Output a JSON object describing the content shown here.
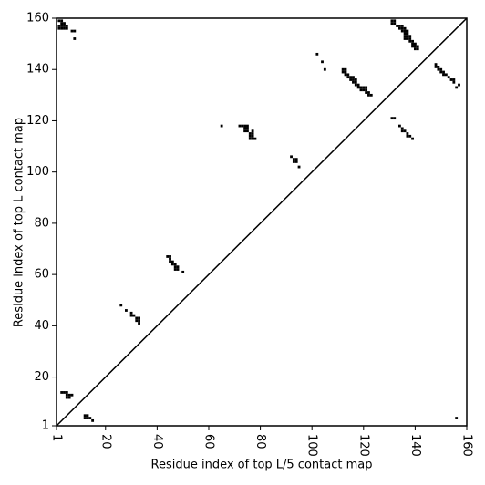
{
  "chart_data": {
    "type": "scatter",
    "xlabel": "Residue index of top L/5 contact map",
    "ylabel": "Residue index of top L contact map",
    "xlim": [
      1,
      160
    ],
    "ylim": [
      1,
      160
    ],
    "xticks": [
      1,
      20,
      40,
      60,
      80,
      100,
      120,
      140,
      160
    ],
    "yticks": [
      1,
      20,
      40,
      60,
      80,
      100,
      120,
      140,
      160
    ],
    "color": "#000000",
    "x": [
      2,
      3,
      3,
      4,
      2,
      3,
      4,
      5,
      4,
      5,
      3,
      2,
      7,
      8,
      8,
      102,
      104,
      105,
      112,
      113,
      113,
      112,
      113,
      114,
      114,
      115,
      116,
      115,
      116,
      117,
      116,
      117,
      118,
      117,
      118,
      119,
      120,
      121,
      119,
      120,
      121,
      121,
      122,
      122,
      123,
      65,
      72,
      73,
      74,
      75,
      74,
      75,
      74,
      75,
      77,
      76,
      77,
      76,
      77,
      76,
      77,
      78,
      92,
      93,
      94,
      93,
      94,
      95,
      44,
      45,
      45,
      45,
      46,
      46,
      47,
      47,
      48,
      47,
      48,
      50,
      26,
      28,
      30,
      30,
      31,
      32,
      33,
      32,
      33,
      33,
      131,
      132,
      131,
      132,
      133,
      134,
      135,
      134,
      135,
      136,
      135,
      136,
      137,
      136,
      137,
      136,
      137,
      138,
      136,
      137,
      138,
      139,
      138,
      139,
      140,
      139,
      140,
      141,
      140,
      141,
      148,
      148,
      149,
      149,
      150,
      150,
      151,
      152,
      151,
      153,
      154,
      155,
      155,
      157,
      156,
      131,
      132,
      134,
      135,
      135,
      136,
      137,
      137,
      138,
      139,
      156,
      3,
      4,
      5,
      5,
      6,
      7,
      5,
      6,
      12,
      13,
      12,
      13,
      14,
      15
    ],
    "values": [
      159,
      159,
      158,
      158,
      157,
      157,
      157,
      157,
      156,
      156,
      156,
      156,
      155,
      155,
      152,
      146,
      143,
      140,
      140,
      140,
      139,
      139,
      138,
      138,
      137,
      137,
      137,
      136,
      136,
      136,
      135,
      135,
      134,
      134,
      133,
      133,
      133,
      133,
      132,
      132,
      132,
      131,
      131,
      130,
      130,
      118,
      118,
      118,
      118,
      118,
      117,
      117,
      116,
      116,
      116,
      115,
      115,
      114,
      114,
      113,
      113,
      113,
      106,
      105,
      105,
      104,
      104,
      102,
      67,
      67,
      66,
      65,
      65,
      64,
      64,
      63,
      63,
      62,
      62,
      61,
      48,
      46,
      45,
      44,
      44,
      43,
      43,
      42,
      42,
      41,
      159,
      159,
      158,
      158,
      157,
      157,
      157,
      156,
      156,
      156,
      155,
      155,
      155,
      154,
      154,
      153,
      153,
      153,
      152,
      152,
      152,
      151,
      151,
      150,
      150,
      149,
      149,
      149,
      148,
      148,
      142,
      141,
      141,
      140,
      140,
      139,
      139,
      138,
      138,
      137,
      136,
      136,
      135,
      134,
      133,
      121,
      121,
      118,
      117,
      116,
      116,
      115,
      114,
      114,
      113,
      4,
      14,
      14,
      14,
      13,
      13,
      13,
      12,
      12,
      5,
      5,
      4,
      4,
      4,
      3
    ]
  }
}
